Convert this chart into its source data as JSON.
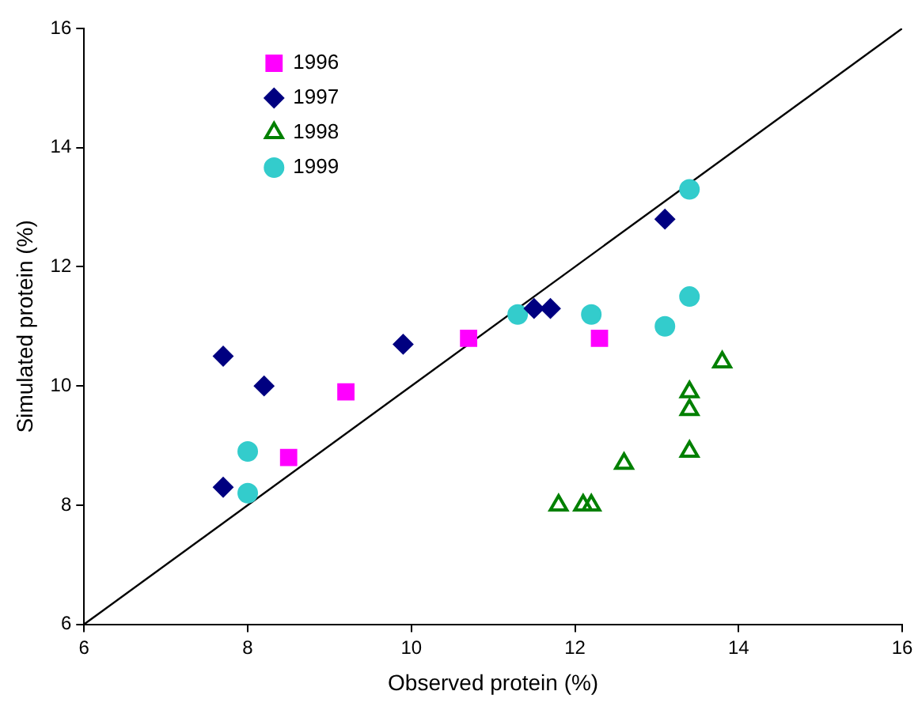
{
  "chart_data": {
    "type": "scatter",
    "xlabel": "Observed protein (%)",
    "ylabel": "Simulated protein (%)",
    "xlim": [
      6,
      16
    ],
    "ylim": [
      6,
      16
    ],
    "xticks": [
      6,
      8,
      10,
      12,
      14,
      16
    ],
    "yticks": [
      6,
      8,
      10,
      12,
      14,
      16
    ],
    "grid": false,
    "legend": "top left",
    "series": [
      {
        "name": "1996",
        "color": "#ff00ff",
        "marker": "square",
        "x": [
          8.5,
          9.2,
          10.7,
          12.3
        ],
        "values": [
          8.8,
          9.9,
          10.8,
          10.8
        ]
      },
      {
        "name": "1997",
        "color": "#000080",
        "marker": "diamond",
        "x": [
          7.7,
          8.2,
          7.7,
          9.9,
          13.1,
          11.5,
          11.7
        ],
        "values": [
          10.5,
          10.0,
          8.3,
          10.7,
          12.8,
          11.3,
          11.3
        ]
      },
      {
        "name": "1998",
        "color": "#008000",
        "marker": "triangle",
        "x": [
          11.8,
          12.1,
          12.2,
          12.6,
          13.4,
          13.4,
          13.4,
          13.8
        ],
        "values": [
          8.0,
          8.0,
          8.0,
          8.7,
          8.9,
          9.9,
          9.6,
          10.4
        ]
      },
      {
        "name": "1999",
        "color": "#33cccc",
        "marker": "circle",
        "x": [
          8.0,
          8.0,
          13.4,
          11.3,
          12.2,
          13.4,
          13.1
        ],
        "values": [
          8.9,
          8.2,
          13.3,
          11.2,
          11.2,
          11.5,
          11.0
        ]
      },
      {
        "type": "line",
        "color": "#000000",
        "marker": "none",
        "line_style": "solid",
        "x": [
          6,
          16
        ],
        "values": [
          6,
          16
        ]
      }
    ]
  }
}
